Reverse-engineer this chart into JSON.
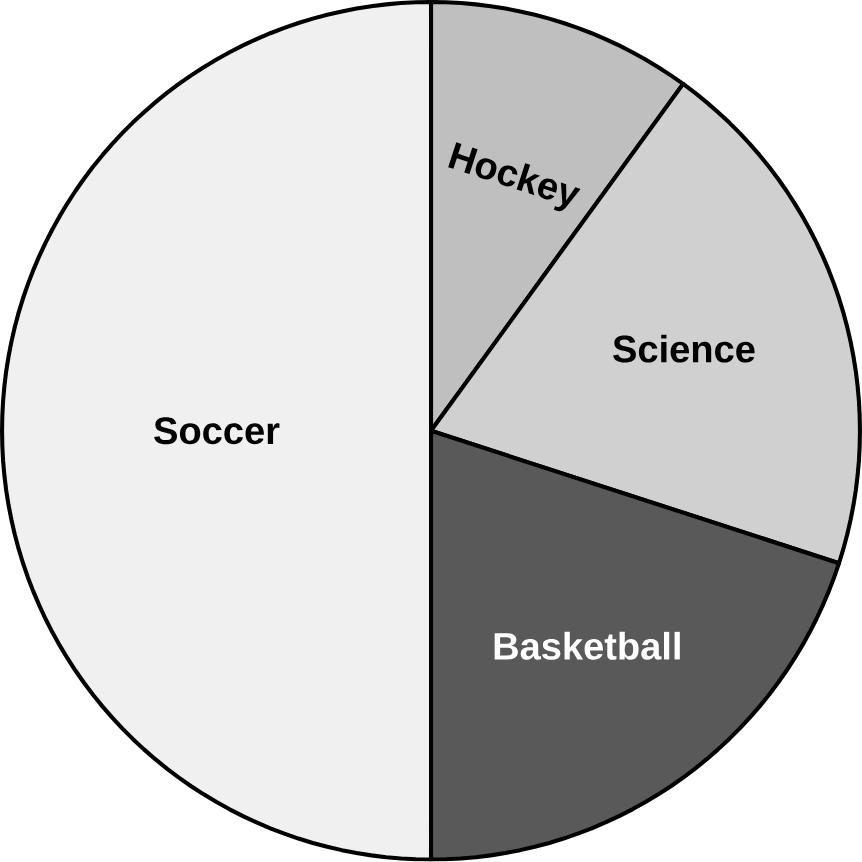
{
  "chart_data": {
    "type": "pie",
    "categories": [
      "Hockey",
      "Science",
      "Basketball",
      "Soccer"
    ],
    "values": [
      10,
      20,
      20,
      50
    ],
    "colors": [
      "#bfbfbf",
      "#d0d0d0",
      "#595959",
      "#f0f0f0"
    ]
  }
}
